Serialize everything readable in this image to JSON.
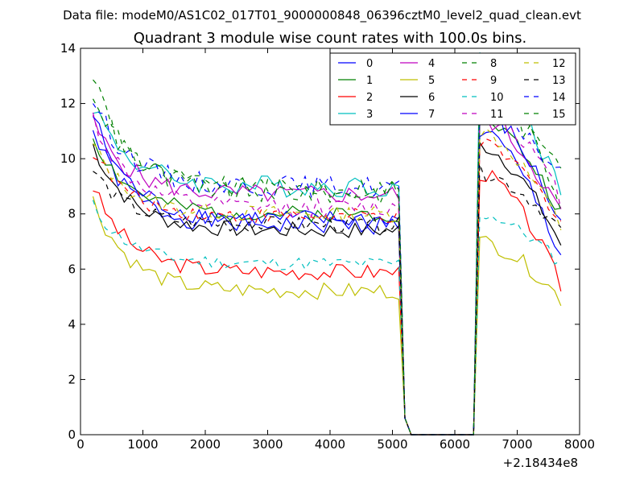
{
  "chart_data": {
    "type": "line",
    "suptitle": "Data file: modeM0/AS1C02_017T01_9000000848_06396cztM0_level2_quad_clean.evt",
    "title": "Quadrant 3 module wise count rates with 100.0s bins.",
    "xlabel": "",
    "ylabel": "",
    "x_offset_label": "+2.18434e8",
    "xlim": [
      0,
      8000
    ],
    "ylim": [
      0,
      14
    ],
    "x_ticks": [
      0,
      1000,
      2000,
      3000,
      4000,
      5000,
      6000,
      7000,
      8000
    ],
    "x_tick_labels": [
      "0",
      "1000",
      "2000",
      "3000",
      "4000",
      "5000",
      "6000",
      "7000",
      "8000"
    ],
    "y_ticks": [
      0,
      2,
      4,
      6,
      8,
      10,
      12,
      14
    ],
    "y_tick_labels": [
      "0",
      "2",
      "4",
      "6",
      "8",
      "10",
      "12",
      "14"
    ],
    "legend_position": "top-right",
    "legend_columns": 4,
    "x_seg1": [
      200,
      5100
    ],
    "gap_points": [
      [
        5200,
        0.6
      ],
      [
        5300,
        0
      ],
      [
        6200,
        0
      ],
      [
        6300,
        0
      ]
    ],
    "x_seg2": [
      6400,
      7700
    ],
    "series": [
      {
        "name": "0",
        "color": "#0000ff",
        "dash": "solid",
        "start": 11.0,
        "plateau": 7.6,
        "noise": 0.35,
        "peak": 11.0,
        "end": 6.5,
        "seed": 1
      },
      {
        "name": "1",
        "color": "#008000",
        "dash": "solid",
        "start": 10.8,
        "plateau": 8.0,
        "noise": 0.3,
        "peak": 11.5,
        "end": 8.0,
        "seed": 2
      },
      {
        "name": "2",
        "color": "#ff0000",
        "dash": "solid",
        "start": 9.0,
        "plateau": 5.9,
        "noise": 0.3,
        "peak": 9.5,
        "end": 5.4,
        "seed": 3
      },
      {
        "name": "3",
        "color": "#00bfbf",
        "dash": "solid",
        "start": 12.0,
        "plateau": 9.0,
        "noise": 0.4,
        "peak": 13.5,
        "end": 8.7,
        "seed": 4
      },
      {
        "name": "4",
        "color": "#bf00bf",
        "dash": "solid",
        "start": 11.3,
        "plateau": 8.7,
        "noise": 0.35,
        "peak": 11.5,
        "end": 8.0,
        "seed": 5
      },
      {
        "name": "5",
        "color": "#bfbf00",
        "dash": "solid",
        "start": 8.5,
        "plateau": 5.2,
        "noise": 0.3,
        "peak": 7.0,
        "end": 4.9,
        "seed": 6
      },
      {
        "name": "6",
        "color": "#000000",
        "dash": "solid",
        "start": 10.5,
        "plateau": 7.4,
        "noise": 0.3,
        "peak": 10.5,
        "end": 6.9,
        "seed": 7
      },
      {
        "name": "7",
        "color": "#0000ff",
        "dash": "solid",
        "start": 11.6,
        "plateau": 7.8,
        "noise": 0.35,
        "peak": 11.8,
        "end": 7.6,
        "seed": 8
      },
      {
        "name": "8",
        "color": "#008000",
        "dash": "dashed",
        "start": 13.1,
        "plateau": 8.8,
        "noise": 0.45,
        "peak": 12.8,
        "end": 8.5,
        "seed": 9
      },
      {
        "name": "9",
        "color": "#ff0000",
        "dash": "dashed",
        "start": 10.3,
        "plateau": 7.9,
        "noise": 0.3,
        "peak": 10.5,
        "end": 7.8,
        "seed": 10
      },
      {
        "name": "10",
        "color": "#00bfbf",
        "dash": "dashed",
        "start": 8.3,
        "plateau": 6.2,
        "noise": 0.25,
        "peak": 8.0,
        "end": 6.2,
        "seed": 11
      },
      {
        "name": "11",
        "color": "#bf00bf",
        "dash": "dashed",
        "start": 11.5,
        "plateau": 8.2,
        "noise": 0.35,
        "peak": 12.0,
        "end": 8.5,
        "seed": 12
      },
      {
        "name": "12",
        "color": "#bfbf00",
        "dash": "dashed",
        "start": 10.5,
        "plateau": 8.0,
        "noise": 0.3,
        "peak": 11.0,
        "end": 7.5,
        "seed": 13
      },
      {
        "name": "13",
        "color": "#000000",
        "dash": "dashed",
        "start": 9.6,
        "plateau": 7.6,
        "noise": 0.3,
        "peak": 9.5,
        "end": 7.4,
        "seed": 14
      },
      {
        "name": "14",
        "color": "#0000ff",
        "dash": "dashed",
        "start": 12.2,
        "plateau": 9.0,
        "noise": 0.4,
        "peak": 12.0,
        "end": 9.3,
        "seed": 15
      },
      {
        "name": "15",
        "color": "#008000",
        "dash": "dashed",
        "start": 12.5,
        "plateau": 8.9,
        "noise": 0.4,
        "peak": 12.5,
        "end": 9.8,
        "seed": 16
      }
    ]
  }
}
